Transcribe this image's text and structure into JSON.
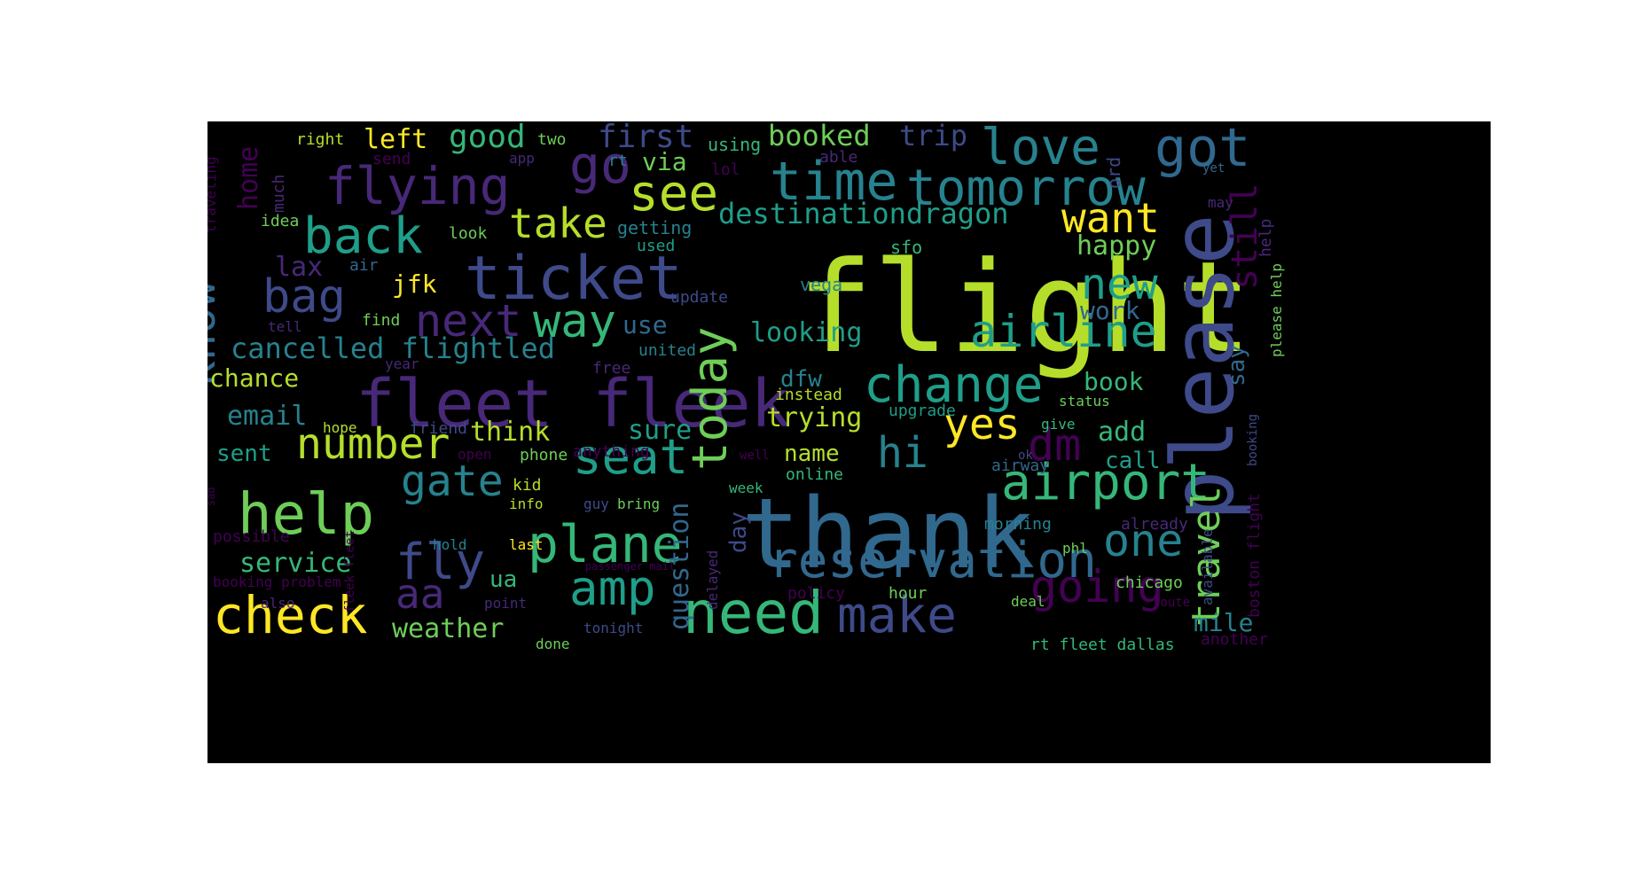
{
  "colors": {
    "background": "#000000",
    "page": "#ffffff",
    "palette": [
      "#440154",
      "#482878",
      "#3e4a89",
      "#31688e",
      "#26828e",
      "#1f9e89",
      "#35b779",
      "#6ece58",
      "#b5de2b",
      "#fde725"
    ]
  },
  "wordcloud": {
    "words": [
      {
        "text": "flight",
        "color": "#b5de2b"
      },
      {
        "text": "thank",
        "color": "#31688e"
      },
      {
        "text": "please",
        "color": "#3e4a89"
      },
      {
        "text": "fleet fleek",
        "color": "#482878"
      },
      {
        "text": "ticket",
        "color": "#3e4a89"
      },
      {
        "text": "need",
        "color": "#35b779"
      },
      {
        "text": "help",
        "color": "#6ece58"
      },
      {
        "text": "time",
        "color": "#26828e"
      },
      {
        "text": "tomorrow",
        "color": "#26828e"
      },
      {
        "text": "flying",
        "color": "#482878"
      },
      {
        "text": "got",
        "color": "#31688e"
      },
      {
        "text": "love",
        "color": "#26828e"
      },
      {
        "text": "change",
        "color": "#1f9e89"
      },
      {
        "text": "airport",
        "color": "#35b779"
      },
      {
        "text": "reservation",
        "color": "#31688e"
      },
      {
        "text": "check",
        "color": "#fde725"
      },
      {
        "text": "make",
        "color": "#3e4a89"
      },
      {
        "text": "plane",
        "color": "#35b779"
      },
      {
        "text": "back",
        "color": "#1f9e89"
      },
      {
        "text": "see",
        "color": "#b5de2b"
      },
      {
        "text": "go",
        "color": "#482878"
      },
      {
        "text": "today",
        "color": "#6ece58"
      },
      {
        "text": "seat",
        "color": "#1f9e89"
      },
      {
        "text": "airline",
        "color": "#1f9e89"
      },
      {
        "text": "know",
        "color": "#31688e"
      },
      {
        "text": "way",
        "color": "#35b779"
      },
      {
        "text": "next",
        "color": "#482878"
      },
      {
        "text": "bag",
        "color": "#3e4a89"
      },
      {
        "text": "fly",
        "color": "#3e4a89"
      },
      {
        "text": "amp",
        "color": "#1f9e89"
      },
      {
        "text": "going",
        "color": "#440154"
      },
      {
        "text": "new",
        "color": "#1f9e89"
      },
      {
        "text": "number",
        "color": "#b5de2b"
      },
      {
        "text": "gate",
        "color": "#26828e"
      },
      {
        "text": "travel",
        "color": "#6ece58"
      },
      {
        "text": "one",
        "color": "#26828e"
      },
      {
        "text": "want",
        "color": "#fde725"
      },
      {
        "text": "take",
        "color": "#b5de2b"
      },
      {
        "text": "hi",
        "color": "#26828e"
      },
      {
        "text": "dm",
        "color": "#440154"
      },
      {
        "text": "yes",
        "color": "#fde725"
      },
      {
        "text": "still",
        "color": "#440154"
      },
      {
        "text": "aa",
        "color": "#482878"
      },
      {
        "text": "cancelled flightled",
        "color": "#26828e"
      },
      {
        "text": "destinationdragon",
        "color": "#1f9e89"
      },
      {
        "text": "question",
        "color": "#31688e"
      },
      {
        "text": "first",
        "color": "#3e4a89"
      },
      {
        "text": "good",
        "color": "#35b779"
      },
      {
        "text": "booked",
        "color": "#6ece58"
      },
      {
        "text": "trip",
        "color": "#3e4a89"
      },
      {
        "text": "left",
        "color": "#fde725"
      },
      {
        "text": "home",
        "color": "#440154"
      },
      {
        "text": "looking",
        "color": "#1f9e89"
      },
      {
        "text": "email",
        "color": "#26828e"
      },
      {
        "text": "trying",
        "color": "#b5de2b"
      },
      {
        "text": "think",
        "color": "#b5de2b"
      },
      {
        "text": "sure",
        "color": "#1f9e89"
      },
      {
        "text": "chance",
        "color": "#b5de2b"
      },
      {
        "text": "service",
        "color": "#35b779"
      },
      {
        "text": "weather",
        "color": "#6ece58"
      },
      {
        "text": "book",
        "color": "#35b779"
      },
      {
        "text": "add",
        "color": "#35b779"
      },
      {
        "text": "call",
        "color": "#1f9e89"
      },
      {
        "text": "work",
        "color": "#31688e"
      },
      {
        "text": "happy",
        "color": "#6ece58"
      },
      {
        "text": "mile",
        "color": "#26828e"
      },
      {
        "text": "name",
        "color": "#b5de2b"
      },
      {
        "text": "sent",
        "color": "#1f9e89"
      },
      {
        "text": "jfk",
        "color": "#fde725"
      },
      {
        "text": "lax",
        "color": "#482878"
      },
      {
        "text": "via",
        "color": "#6ece58"
      },
      {
        "text": "use",
        "color": "#31688e"
      },
      {
        "text": "dfw",
        "color": "#26828e"
      },
      {
        "text": "say",
        "color": "#31688e"
      },
      {
        "text": "day",
        "color": "#3e4a89"
      },
      {
        "text": "ua",
        "color": "#35b779"
      },
      {
        "text": "right",
        "color": "#b5de2b"
      },
      {
        "text": "two",
        "color": "#6ece58"
      },
      {
        "text": "using",
        "color": "#35b779"
      },
      {
        "text": "send",
        "color": "#440154"
      },
      {
        "text": "much",
        "color": "#482878"
      },
      {
        "text": "app",
        "color": "#482878"
      },
      {
        "text": "rt",
        "color": "#26828e"
      },
      {
        "text": "lol",
        "color": "#440154"
      },
      {
        "text": "able",
        "color": "#482878"
      },
      {
        "text": "yet",
        "color": "#31688e"
      },
      {
        "text": "may",
        "color": "#482878"
      },
      {
        "text": "ord",
        "color": "#3e4a89"
      },
      {
        "text": "idea",
        "color": "#6ece58"
      },
      {
        "text": "look",
        "color": "#6ece58"
      },
      {
        "text": "getting",
        "color": "#26828e"
      },
      {
        "text": "used",
        "color": "#1f9e89"
      },
      {
        "text": "sfo",
        "color": "#35b779"
      },
      {
        "text": "help",
        "color": "#482878"
      },
      {
        "text": "air",
        "color": "#31688e"
      },
      {
        "text": "vega",
        "color": "#26828e"
      },
      {
        "text": "update",
        "color": "#3e4a89"
      },
      {
        "text": "find",
        "color": "#6ece58"
      },
      {
        "text": "tell",
        "color": "#482878"
      },
      {
        "text": "united",
        "color": "#26828e"
      },
      {
        "text": "year",
        "color": "#482878"
      },
      {
        "text": "free",
        "color": "#482878"
      },
      {
        "text": "instead",
        "color": "#b5de2b"
      },
      {
        "text": "upgrade",
        "color": "#1f9e89"
      },
      {
        "text": "status",
        "color": "#6ece58"
      },
      {
        "text": "hope",
        "color": "#b5de2b"
      },
      {
        "text": "friend",
        "color": "#3e4a89"
      },
      {
        "text": "give",
        "color": "#35b779"
      },
      {
        "text": "ok",
        "color": "#3e4a89"
      },
      {
        "text": "open",
        "color": "#440154"
      },
      {
        "text": "phone",
        "color": "#6ece58"
      },
      {
        "text": "anything",
        "color": "#440154"
      },
      {
        "text": "well",
        "color": "#440154"
      },
      {
        "text": "online",
        "color": "#35b779"
      },
      {
        "text": "airway",
        "color": "#31688e"
      },
      {
        "text": "kid",
        "color": "#b5de2b"
      },
      {
        "text": "info",
        "color": "#b5de2b"
      },
      {
        "text": "guy",
        "color": "#3e4a89"
      },
      {
        "text": "bring",
        "color": "#6ece58"
      },
      {
        "text": "week",
        "color": "#35b779"
      },
      {
        "text": "morning",
        "color": "#26828e"
      },
      {
        "text": "already",
        "color": "#482878"
      },
      {
        "text": "available",
        "color": "#3e4a89"
      },
      {
        "text": "boston flight",
        "color": "#440154"
      },
      {
        "text": "booking",
        "color": "#3e4a89"
      },
      {
        "text": "please help",
        "color": "#6ece58"
      },
      {
        "text": "possible",
        "color": "#440154"
      },
      {
        "text": "hold",
        "color": "#26828e"
      },
      {
        "text": "delayed",
        "color": "#482878"
      },
      {
        "text": "last",
        "color": "#fde725"
      },
      {
        "text": "phl",
        "color": "#6ece58"
      },
      {
        "text": "booking problem",
        "color": "#440154"
      },
      {
        "text": "passenger mail",
        "color": "#440154"
      },
      {
        "text": "policy",
        "color": "#440154"
      },
      {
        "text": "hour",
        "color": "#6ece58"
      },
      {
        "text": "deal",
        "color": "#6ece58"
      },
      {
        "text": "chicago",
        "color": "#6ece58"
      },
      {
        "text": "route",
        "color": "#440154"
      },
      {
        "text": "also",
        "color": "#482878"
      },
      {
        "text": "point",
        "color": "#482878"
      },
      {
        "text": "tonight",
        "color": "#3e4a89"
      },
      {
        "text": "done",
        "color": "#6ece58"
      },
      {
        "text": "rt fleet dallas",
        "color": "#35b779"
      },
      {
        "text": "another",
        "color": "#440154"
      },
      {
        "text": "sad",
        "color": "#440154"
      },
      {
        "text": "traveling",
        "color": "#440154"
      },
      {
        "text": "fleek fleet",
        "color": "#440154"
      }
    ]
  }
}
